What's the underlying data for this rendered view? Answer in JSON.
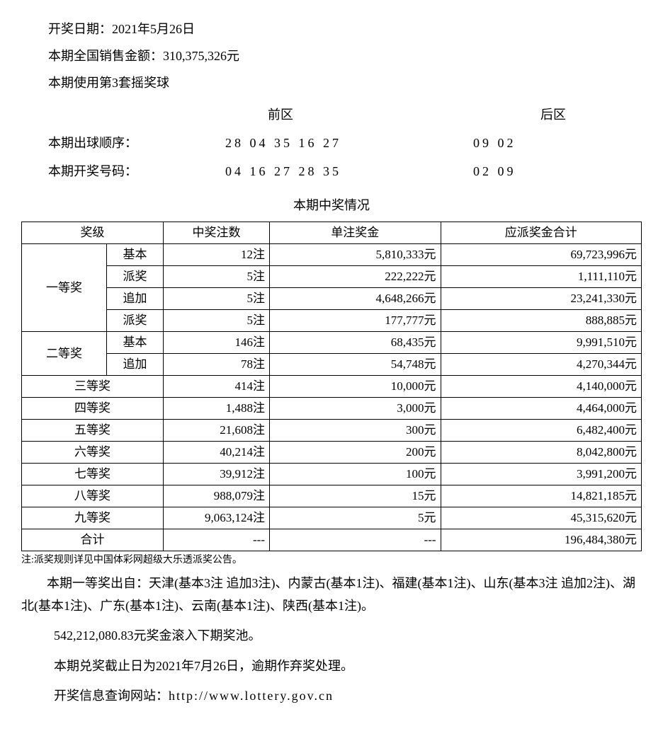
{
  "header": {
    "draw_date": "开奖日期：2021年5月26日",
    "sales_total": "本期全国销售金额：310,375,326元",
    "ball_set": "本期使用第3套摇奖球"
  },
  "numbers": {
    "front_label": "前区",
    "back_label": "后区",
    "order_label": "本期出球顺序：",
    "order_front": "28 04 35 16 27",
    "order_back": "09 02",
    "result_label": "本期开奖号码：",
    "result_front": "04 16 27 28 35",
    "result_back": "02 09"
  },
  "table_title": "本期中奖情况",
  "table": {
    "headers": {
      "level": "奖级",
      "count": "中奖注数",
      "unit": "单注奖金",
      "total": "应派奖金合计"
    },
    "tier1": {
      "name": "一等奖",
      "rows": [
        {
          "sub": "基本",
          "count": "12注",
          "unit": "5,810,333元",
          "total": "69,723,996元"
        },
        {
          "sub": "派奖",
          "count": "5注",
          "unit": "222,222元",
          "total": "1,111,110元"
        },
        {
          "sub": "追加",
          "count": "5注",
          "unit": "4,648,266元",
          "total": "23,241,330元"
        },
        {
          "sub": "派奖",
          "count": "5注",
          "unit": "177,777元",
          "total": "888,885元"
        }
      ]
    },
    "tier2": {
      "name": "二等奖",
      "rows": [
        {
          "sub": "基本",
          "count": "146注",
          "unit": "68,435元",
          "total": "9,991,510元"
        },
        {
          "sub": "追加",
          "count": "78注",
          "unit": "54,748元",
          "total": "4,270,344元"
        }
      ]
    },
    "simple": [
      {
        "name": "三等奖",
        "count": "414注",
        "unit": "10,000元",
        "total": "4,140,000元"
      },
      {
        "name": "四等奖",
        "count": "1,488注",
        "unit": "3,000元",
        "total": "4,464,000元"
      },
      {
        "name": "五等奖",
        "count": "21,608注",
        "unit": "300元",
        "total": "6,482,400元"
      },
      {
        "name": "六等奖",
        "count": "40,214注",
        "unit": "200元",
        "total": "8,042,800元"
      },
      {
        "name": "七等奖",
        "count": "39,912注",
        "unit": "100元",
        "total": "3,991,200元"
      },
      {
        "name": "八等奖",
        "count": "988,079注",
        "unit": "15元",
        "total": "14,821,185元"
      },
      {
        "name": "九等奖",
        "count": "9,063,124注",
        "unit": "5元",
        "total": "45,315,620元"
      }
    ],
    "sum": {
      "name": "合计",
      "count": "---",
      "unit": "---",
      "total": "196,484,380元"
    }
  },
  "footnote": "注:派奖规则详见中国体彩网超级大乐透派奖公告。",
  "paras": {
    "p1": "本期一等奖出自：天津(基本3注 追加3注)、内蒙古(基本1注)、福建(基本1注)、山东(基本3注 追加2注)、湖北(基本1注)、广东(基本1注)、云南(基本1注)、陕西(基本1注)。",
    "p2": "542,212,080.83元奖金滚入下期奖池。",
    "p3": "本期兑奖截止日为2021年7月26日，逾期作弃奖处理。",
    "p4_label": "开奖信息查询网站：",
    "p4_url": "http://www.lottery.gov.cn"
  },
  "style": {
    "col_widths": {
      "level_main": "120",
      "level_sub": "80",
      "count": "150",
      "unit": "260",
      "total": "260"
    }
  }
}
